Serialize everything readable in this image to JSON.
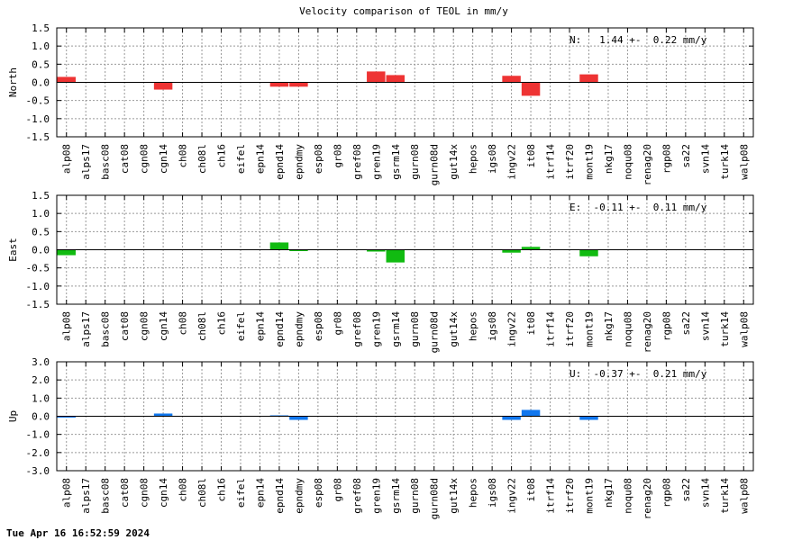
{
  "title": "Velocity comparison of TEOL in mm/y",
  "footer": "Tue Apr 16 16:52:59 2024",
  "chart_data": {
    "type": "bar",
    "categories": [
      "alp08",
      "alps17",
      "basc08",
      "cat08",
      "cgn08",
      "cgn14",
      "ch08",
      "ch08l",
      "ch16",
      "eifel",
      "epn14",
      "epnd14",
      "epndmy",
      "esp08",
      "gr08",
      "gref08",
      "gren19",
      "gsrm14",
      "gurn08",
      "gurn08d",
      "gut14x",
      "hepos",
      "igs08",
      "ingv22",
      "it08",
      "itrf14",
      "itrf20",
      "mont19",
      "nkg17",
      "noqu08",
      "renag20",
      "rgp08",
      "sa22",
      "svn14",
      "turk14",
      "walp08"
    ],
    "panels": [
      {
        "name": "North",
        "ylabel": "North",
        "ylim": [
          -1.5,
          1.5
        ],
        "yticks": [
          "1.5",
          "1.0",
          "0.5",
          "0.0",
          "-0.5",
          "-1.0",
          "-1.5"
        ],
        "annotation": "N:   1.44 +-  0.22 mm/y",
        "color": "#ee3333",
        "values": [
          0.15,
          null,
          null,
          null,
          null,
          -0.2,
          null,
          null,
          null,
          null,
          null,
          -0.12,
          -0.12,
          null,
          null,
          null,
          0.3,
          0.2,
          null,
          null,
          null,
          null,
          null,
          0.18,
          -0.37,
          null,
          null,
          0.22,
          null,
          null,
          null,
          null,
          null,
          null,
          null,
          null
        ]
      },
      {
        "name": "East",
        "ylabel": "East",
        "ylim": [
          -1.5,
          1.5
        ],
        "yticks": [
          "1.5",
          "1.0",
          "0.5",
          "0.0",
          "-0.5",
          "-1.0",
          "-1.5"
        ],
        "annotation": "E:  -0.11 +-  0.11 mm/y",
        "color": "#11bb11",
        "values": [
          -0.15,
          null,
          null,
          null,
          null,
          null,
          null,
          null,
          null,
          null,
          null,
          0.2,
          -0.03,
          null,
          null,
          null,
          -0.05,
          -0.35,
          null,
          null,
          null,
          null,
          null,
          -0.08,
          0.08,
          null,
          null,
          -0.18,
          null,
          null,
          null,
          null,
          null,
          null,
          null,
          null
        ]
      },
      {
        "name": "Up",
        "ylabel": "Up",
        "ylim": [
          -3.0,
          3.0
        ],
        "yticks": [
          "3.0",
          "2.0",
          "1.0",
          "0.0",
          "-1.0",
          "-2.0",
          "-3.0"
        ],
        "annotation": "U:  -0.37 +-  0.21 mm/y",
        "color": "#1177ee",
        "values": [
          -0.05,
          null,
          null,
          null,
          null,
          0.15,
          null,
          null,
          null,
          null,
          null,
          0.05,
          -0.2,
          null,
          null,
          null,
          null,
          null,
          null,
          null,
          null,
          null,
          null,
          -0.2,
          0.35,
          null,
          null,
          -0.2,
          null,
          null,
          null,
          null,
          null,
          null,
          null,
          null
        ]
      }
    ],
    "grid": true
  }
}
